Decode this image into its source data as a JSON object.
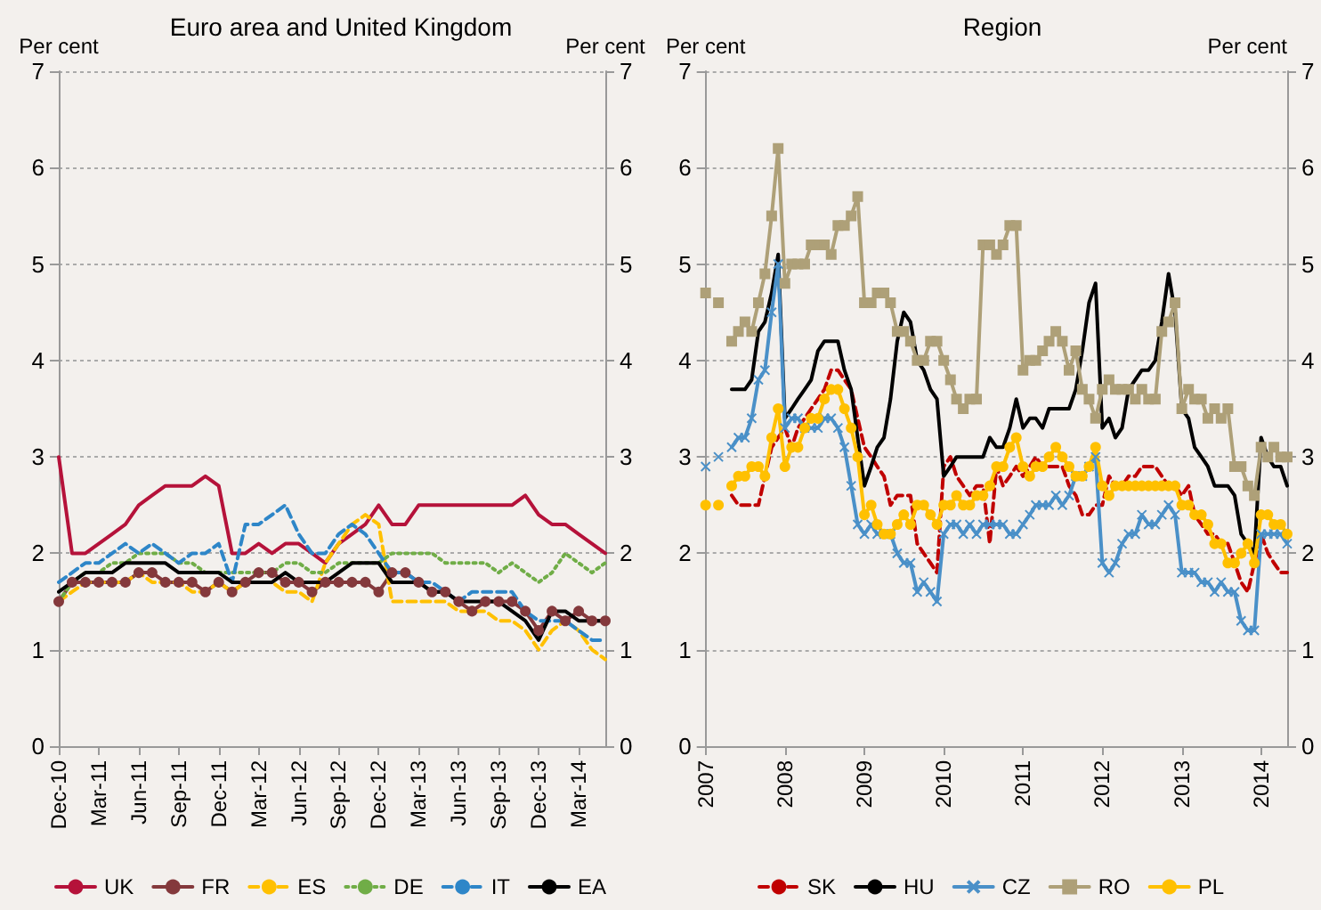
{
  "chart_data": [
    {
      "type": "line",
      "title": "Euro area and United Kingdom",
      "ylabel": "Per cent",
      "y2label": "Per cent",
      "ylim": [
        0,
        7
      ],
      "yticks": [
        0,
        1,
        2,
        3,
        4,
        5,
        6,
        7
      ],
      "y2lim": [
        0,
        7
      ],
      "y2ticks": [
        0,
        1,
        2,
        3,
        4,
        5,
        6,
        7
      ],
      "grid": "y",
      "legend": "bottom",
      "categories": [
        "Dec-10",
        null,
        null,
        "Mar-11",
        null,
        null,
        "Jun-11",
        null,
        null,
        "Sep-11",
        null,
        null,
        "Dec-11",
        null,
        null,
        "Mar-12",
        null,
        null,
        "Jun-12",
        null,
        null,
        "Sep-12",
        null,
        null,
        "Dec-12",
        null,
        null,
        "Mar-13",
        null,
        null,
        "Jun-13",
        null,
        null,
        "Sep-13",
        null,
        null,
        "Dec-13",
        null,
        null,
        "Mar-14",
        null,
        null
      ],
      "series": [
        {
          "name": "UK",
          "color": "#b5123a",
          "line_style": "solid",
          "values": [
            3.0,
            2.0,
            2.0,
            2.1,
            2.2,
            2.3,
            2.5,
            2.6,
            2.7,
            2.7,
            2.7,
            2.8,
            2.7,
            2.0,
            2.0,
            2.1,
            2.0,
            2.1,
            2.1,
            2.0,
            1.9,
            2.1,
            2.2,
            2.3,
            2.5,
            2.3,
            2.3,
            2.5,
            2.5,
            2.5,
            2.5,
            2.5,
            2.5,
            2.5,
            2.5,
            2.6,
            2.4,
            2.3,
            2.3,
            2.2,
            2.1,
            2.0
          ]
        },
        {
          "name": "FR",
          "color": "#84393c",
          "line_style": "solid",
          "marker": "circle",
          "values": [
            1.5,
            1.7,
            1.7,
            1.7,
            1.7,
            1.7,
            1.8,
            1.8,
            1.7,
            1.7,
            1.7,
            1.6,
            1.7,
            1.6,
            1.7,
            1.8,
            1.8,
            1.7,
            1.7,
            1.6,
            1.7,
            1.7,
            1.7,
            1.7,
            1.6,
            1.8,
            1.8,
            1.7,
            1.6,
            1.6,
            1.5,
            1.4,
            1.5,
            1.5,
            1.5,
            1.4,
            1.2,
            1.4,
            1.3,
            1.4,
            1.3,
            1.3
          ]
        },
        {
          "name": "ES",
          "color": "#ffc000",
          "line_style": "dashed",
          "values": [
            1.5,
            1.6,
            1.7,
            1.7,
            1.7,
            1.7,
            1.8,
            1.7,
            1.7,
            1.7,
            1.6,
            1.6,
            1.7,
            1.6,
            1.7,
            1.7,
            1.7,
            1.6,
            1.6,
            1.5,
            1.9,
            2.1,
            2.3,
            2.4,
            2.3,
            1.5,
            1.5,
            1.5,
            1.5,
            1.5,
            1.4,
            1.4,
            1.4,
            1.3,
            1.3,
            1.2,
            1.0,
            1.2,
            1.3,
            1.2,
            1.0,
            0.9
          ]
        },
        {
          "name": "DE",
          "color": "#70ad47",
          "line_style": "dotted",
          "values": [
            1.5,
            1.7,
            1.8,
            1.8,
            1.9,
            1.9,
            2.0,
            2.0,
            2.0,
            1.9,
            1.9,
            1.8,
            1.8,
            1.8,
            1.8,
            1.8,
            1.8,
            1.9,
            1.9,
            1.8,
            1.8,
            1.9,
            1.9,
            1.9,
            1.9,
            2.0,
            2.0,
            2.0,
            2.0,
            1.9,
            1.9,
            1.9,
            1.9,
            1.8,
            1.9,
            1.8,
            1.7,
            1.8,
            2.0,
            1.9,
            1.8,
            1.9
          ]
        },
        {
          "name": "IT",
          "color": "#2e86c8",
          "line_style": "dashed",
          "values": [
            1.7,
            1.8,
            1.9,
            1.9,
            2.0,
            2.1,
            2.0,
            2.1,
            2.0,
            1.9,
            2.0,
            2.0,
            2.1,
            1.7,
            2.3,
            2.3,
            2.4,
            2.5,
            2.2,
            2.0,
            2.0,
            2.2,
            2.3,
            2.2,
            2.0,
            1.8,
            1.8,
            1.7,
            1.7,
            1.6,
            1.5,
            1.6,
            1.6,
            1.6,
            1.6,
            1.4,
            1.3,
            1.3,
            1.3,
            1.2,
            1.1,
            1.1
          ]
        },
        {
          "name": "EA",
          "color": "#000000",
          "line_style": "solid",
          "values": [
            1.6,
            1.7,
            1.8,
            1.8,
            1.8,
            1.9,
            1.9,
            1.9,
            1.9,
            1.8,
            1.8,
            1.8,
            1.8,
            1.7,
            1.7,
            1.7,
            1.7,
            1.8,
            1.7,
            1.7,
            1.7,
            1.8,
            1.9,
            1.9,
            1.9,
            1.7,
            1.7,
            1.7,
            1.6,
            1.6,
            1.5,
            1.5,
            1.5,
            1.5,
            1.4,
            1.3,
            1.1,
            1.4,
            1.4,
            1.3,
            1.3,
            1.3
          ]
        }
      ]
    },
    {
      "type": "line",
      "title": "Region",
      "ylabel": "Per cent",
      "y2label": "Per cent",
      "ylim": [
        0,
        7
      ],
      "yticks": [
        0,
        1,
        2,
        3,
        4,
        5,
        6,
        7
      ],
      "y2lim": [
        0,
        7
      ],
      "y2ticks": [
        0,
        1,
        2,
        3,
        4,
        5,
        6,
        7
      ],
      "grid": "y",
      "legend": "bottom",
      "xlim": [
        "2007",
        "2014-05"
      ],
      "xticks": [
        "2007",
        "2008",
        "2009",
        "2010",
        "2011",
        "2012",
        "2013",
        "2014"
      ],
      "x": [
        "2007-01",
        "2007-02",
        "2007-03",
        "2007-04",
        "2007-05",
        "2007-06",
        "2007-07",
        "2007-08",
        "2007-09",
        "2007-10",
        "2007-11",
        "2007-12",
        "2008-01",
        "2008-02",
        "2008-03",
        "2008-04",
        "2008-05",
        "2008-06",
        "2008-07",
        "2008-08",
        "2008-09",
        "2008-10",
        "2008-11",
        "2008-12",
        "2009-01",
        "2009-02",
        "2009-03",
        "2009-04",
        "2009-05",
        "2009-06",
        "2009-07",
        "2009-08",
        "2009-09",
        "2009-10",
        "2009-11",
        "2009-12",
        "2010-01",
        "2010-02",
        "2010-03",
        "2010-04",
        "2010-05",
        "2010-06",
        "2010-07",
        "2010-08",
        "2010-09",
        "2010-10",
        "2010-11",
        "2010-12",
        "2011-01",
        "2011-02",
        "2011-03",
        "2011-04",
        "2011-05",
        "2011-06",
        "2011-07",
        "2011-08",
        "2011-09",
        "2011-10",
        "2011-11",
        "2011-12",
        "2012-01",
        "2012-02",
        "2012-03",
        "2012-04",
        "2012-05",
        "2012-06",
        "2012-07",
        "2012-08",
        "2012-09",
        "2012-10",
        "2012-11",
        "2012-12",
        "2013-01",
        "2013-02",
        "2013-03",
        "2013-04",
        "2013-05",
        "2013-06",
        "2013-07",
        "2013-08",
        "2013-09",
        "2013-10",
        "2013-11",
        "2013-12",
        "2014-01",
        "2014-02",
        "2014-03",
        "2014-04",
        "2014-05"
      ],
      "series": [
        {
          "name": "SK",
          "color": "#c00000",
          "line_style": "dashed",
          "values": [
            null,
            null,
            null,
            null,
            2.6,
            2.5,
            2.5,
            2.5,
            2.5,
            2.8,
            3.1,
            3.2,
            3.3,
            3.1,
            3.3,
            3.4,
            3.5,
            3.6,
            3.7,
            3.9,
            3.9,
            3.8,
            3.7,
            3.4,
            3.1,
            3.0,
            2.9,
            2.8,
            2.5,
            2.6,
            2.6,
            2.6,
            2.1,
            2.0,
            1.9,
            1.8,
            2.9,
            3.0,
            2.8,
            2.7,
            2.6,
            2.7,
            2.7,
            2.1,
            2.9,
            2.7,
            2.8,
            2.9,
            2.8,
            2.9,
            3.0,
            2.9,
            2.9,
            2.9,
            2.9,
            2.7,
            2.6,
            2.4,
            2.4,
            2.5,
            2.5,
            2.8,
            2.7,
            2.7,
            2.8,
            2.8,
            2.9,
            2.9,
            2.9,
            2.8,
            2.7,
            2.7,
            2.6,
            2.7,
            2.4,
            2.3,
            2.2,
            2.2,
            2.1,
            2.1,
            1.9,
            1.7,
            1.6,
            1.9,
            2.2,
            2.0,
            1.9,
            1.8,
            1.8
          ]
        },
        {
          "name": "HU",
          "color": "#000000",
          "line_style": "solid",
          "values": [
            null,
            null,
            null,
            null,
            3.7,
            3.7,
            3.7,
            3.8,
            4.3,
            4.4,
            4.7,
            5.1,
            3.4,
            3.5,
            3.6,
            3.7,
            3.8,
            4.1,
            4.2,
            4.2,
            4.2,
            3.9,
            3.7,
            3.2,
            2.7,
            2.9,
            3.1,
            3.2,
            3.6,
            4.2,
            4.5,
            4.4,
            4.0,
            3.9,
            3.7,
            3.6,
            2.8,
            2.9,
            3.0,
            3.0,
            3.0,
            3.0,
            3.0,
            3.2,
            3.1,
            3.1,
            3.3,
            3.6,
            3.3,
            3.4,
            3.4,
            3.3,
            3.5,
            3.5,
            3.5,
            3.5,
            3.7,
            4.1,
            4.6,
            4.8,
            3.3,
            3.4,
            3.2,
            3.3,
            3.7,
            3.8,
            3.9,
            3.9,
            4.0,
            4.4,
            4.9,
            4.5,
            3.5,
            3.4,
            3.1,
            3.0,
            2.9,
            2.7,
            2.7,
            2.7,
            2.6,
            2.2,
            2.1,
            2.0,
            3.2,
            3.0,
            2.9,
            2.9,
            2.7
          ]
        },
        {
          "name": "CZ",
          "color": "#4a90c8",
          "line_style": "solid",
          "marker": "cross",
          "values": [
            2.9,
            null,
            3.0,
            null,
            3.1,
            3.2,
            3.2,
            3.4,
            3.8,
            3.9,
            4.5,
            5.0,
            3.3,
            3.4,
            3.4,
            3.3,
            3.3,
            3.3,
            3.4,
            3.4,
            3.3,
            3.1,
            2.7,
            2.3,
            2.2,
            2.3,
            2.2,
            2.2,
            2.2,
            2.0,
            1.9,
            1.9,
            1.6,
            1.7,
            1.6,
            1.5,
            2.2,
            2.3,
            2.3,
            2.2,
            2.3,
            2.2,
            2.3,
            2.3,
            2.3,
            2.3,
            2.2,
            2.2,
            2.3,
            2.4,
            2.5,
            2.5,
            2.5,
            2.6,
            2.5,
            2.6,
            2.8,
            2.8,
            2.9,
            3.0,
            1.9,
            1.8,
            1.9,
            2.1,
            2.2,
            2.2,
            2.4,
            2.3,
            2.3,
            2.4,
            2.5,
            2.4,
            1.8,
            1.8,
            1.8,
            1.7,
            1.7,
            1.6,
            1.7,
            1.6,
            1.6,
            1.3,
            1.2,
            1.2,
            2.2,
            2.2,
            2.2,
            2.2,
            2.1
          ]
        },
        {
          "name": "RO",
          "color": "#aea078",
          "line_style": "solid",
          "marker": "square",
          "values": [
            4.7,
            null,
            4.6,
            null,
            4.2,
            4.3,
            4.4,
            4.3,
            4.6,
            4.9,
            5.5,
            6.2,
            4.8,
            5.0,
            5.0,
            5.0,
            5.2,
            5.2,
            5.2,
            5.1,
            5.4,
            5.4,
            5.5,
            5.7,
            4.6,
            4.6,
            4.7,
            4.7,
            4.6,
            4.3,
            4.3,
            4.2,
            4.0,
            4.0,
            4.2,
            4.2,
            4.0,
            3.8,
            3.6,
            3.5,
            3.6,
            3.6,
            5.2,
            5.2,
            5.1,
            5.2,
            5.4,
            5.4,
            3.9,
            4.0,
            4.0,
            4.1,
            4.2,
            4.3,
            4.2,
            3.9,
            4.1,
            3.7,
            3.6,
            3.4,
            3.7,
            3.8,
            3.7,
            3.7,
            3.7,
            3.6,
            3.7,
            3.6,
            3.6,
            4.3,
            4.4,
            4.6,
            3.5,
            3.7,
            3.6,
            3.6,
            3.4,
            3.5,
            3.4,
            3.5,
            2.9,
            2.9,
            2.7,
            2.6,
            3.1,
            3.0,
            3.1,
            3.0,
            3.0
          ]
        },
        {
          "name": "PL",
          "color": "#ffc000",
          "line_style": "solid",
          "marker": "circle",
          "values": [
            2.5,
            null,
            2.5,
            null,
            2.7,
            2.8,
            2.8,
            2.9,
            2.9,
            2.8,
            3.2,
            3.5,
            2.9,
            3.1,
            3.1,
            3.3,
            3.4,
            3.4,
            3.6,
            3.7,
            3.7,
            3.5,
            3.3,
            3.0,
            2.4,
            2.5,
            2.3,
            2.2,
            2.2,
            2.3,
            2.4,
            2.3,
            2.5,
            2.5,
            2.4,
            2.3,
            2.5,
            2.5,
            2.6,
            2.5,
            2.5,
            2.6,
            2.6,
            2.7,
            2.9,
            2.9,
            3.1,
            3.2,
            2.9,
            2.8,
            2.9,
            2.9,
            3.0,
            3.1,
            3.0,
            2.9,
            2.8,
            2.8,
            2.9,
            3.1,
            2.7,
            2.6,
            2.7,
            2.7,
            2.7,
            2.7,
            2.7,
            2.7,
            2.7,
            2.7,
            2.7,
            2.7,
            2.5,
            2.5,
            2.4,
            2.4,
            2.3,
            2.1,
            2.1,
            1.9,
            1.9,
            2.0,
            2.1,
            1.9,
            2.4,
            2.4,
            2.3,
            2.3,
            2.2
          ]
        }
      ]
    }
  ]
}
